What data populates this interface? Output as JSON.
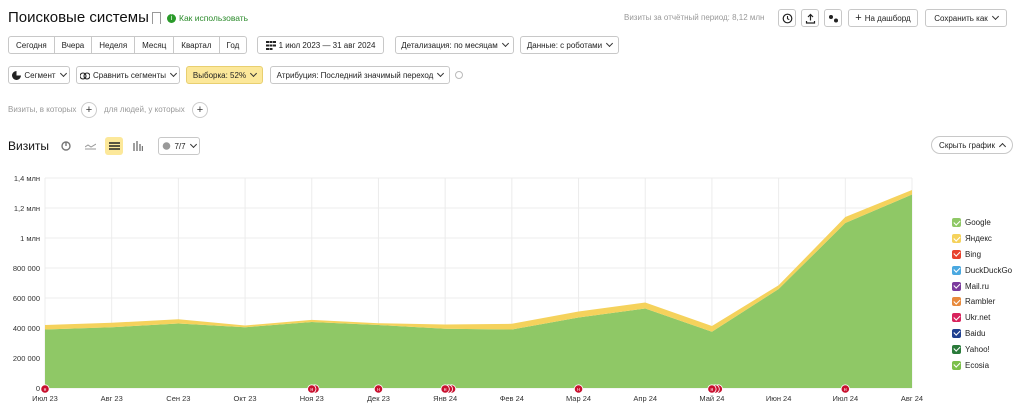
{
  "header": {
    "title": "Поисковые системы",
    "howto": "Как использовать",
    "visits_period": "Визиты за отчётный период: 8,12 млн",
    "dashboard_btn": "На дашборд",
    "save_btn": "Сохранить как"
  },
  "toolbar": {
    "periods": [
      "Сегодня",
      "Вчера",
      "Неделя",
      "Месяц",
      "Квартал",
      "Год"
    ],
    "date_range": "1 июл 2023 — 31 авг 2024",
    "detail": "Детализация: по месяцам",
    "data": "Данные: с роботами"
  },
  "segments": {
    "segment": "Сегмент",
    "compare": "Сравнить сегменты",
    "sample": "Выборка: 52%",
    "attribution": "Атрибуция: Последний значимый переход"
  },
  "filters": {
    "visits_where": "Визиты, в которых",
    "people_where": "для людей, у которых"
  },
  "chart_section": {
    "title": "Визиты",
    "series_counter": "7/7",
    "hide_chart": "Скрыть график"
  },
  "chart_data": {
    "type": "area",
    "stacked": true,
    "x": [
      "Июл 23",
      "Авг 23",
      "Сен 23",
      "Окт 23",
      "Ноя 23",
      "Дек 23",
      "Янв 24",
      "Фев 24",
      "Мар 24",
      "Апр 24",
      "Май 24",
      "Июн 24",
      "Июл 24",
      "Авг 24"
    ],
    "y_ticks": [
      "0",
      "200 000",
      "400 000",
      "600 000",
      "800 000",
      "1 млн",
      "1,2 млн",
      "1,4 млн"
    ],
    "ylim": [
      0,
      1400000
    ],
    "series": [
      {
        "name": "Google",
        "color": "#8fc866",
        "values": [
          390000,
          405000,
          430000,
          405000,
          440000,
          420000,
          395000,
          390000,
          470000,
          530000,
          375000,
          660000,
          1100000,
          1290000
        ]
      },
      {
        "name": "Яндекс",
        "color": "#f5d25c",
        "values": [
          30000,
          30000,
          28000,
          12000,
          14000,
          12000,
          28000,
          38000,
          40000,
          40000,
          38000,
          25000,
          40000,
          30000
        ]
      },
      {
        "name": "Bing",
        "color": "#e8412c",
        "values": [
          0,
          0,
          0,
          0,
          0,
          0,
          0,
          0,
          0,
          0,
          0,
          0,
          0,
          0
        ]
      },
      {
        "name": "DuckDuckGo",
        "color": "#4aa8e0",
        "values": [
          0,
          0,
          0,
          0,
          0,
          0,
          0,
          0,
          0,
          0,
          0,
          0,
          0,
          0
        ]
      },
      {
        "name": "Mail.ru",
        "color": "#7b3a9e",
        "values": [
          0,
          0,
          0,
          0,
          0,
          0,
          0,
          0,
          0,
          0,
          0,
          0,
          0,
          0
        ]
      },
      {
        "name": "Rambler",
        "color": "#e88a3c",
        "values": [
          0,
          0,
          0,
          0,
          0,
          0,
          0,
          0,
          0,
          0,
          0,
          0,
          0,
          0
        ]
      },
      {
        "name": "Ukr.net",
        "color": "#d8235c",
        "values": [
          0,
          0,
          0,
          0,
          0,
          0,
          0,
          0,
          0,
          0,
          0,
          0,
          0,
          0
        ]
      },
      {
        "name": "Baidu",
        "color": "#1f3f8f",
        "values": [
          0,
          0,
          0,
          0,
          0,
          0,
          0,
          0,
          0,
          0,
          0,
          0,
          0,
          0
        ]
      },
      {
        "name": "Yahoo!",
        "color": "#2a7a3a",
        "values": [
          0,
          0,
          0,
          0,
          0,
          0,
          0,
          0,
          0,
          0,
          0,
          0,
          0,
          0
        ]
      },
      {
        "name": "Ecosia",
        "color": "#7cc04a",
        "values": [
          0,
          0,
          0,
          0,
          0,
          0,
          0,
          0,
          0,
          0,
          0,
          0,
          0,
          0
        ]
      }
    ],
    "annotations": [
      {
        "x": "Июл 23",
        "count": 1
      },
      {
        "x": "Ноя 23",
        "count": 2
      },
      {
        "x": "Дек 23",
        "count": 1
      },
      {
        "x": "Янв 24",
        "count": 3
      },
      {
        "x": "Мар 24",
        "count": 1
      },
      {
        "x": "Май 24",
        "count": 3
      },
      {
        "x": "Июл 24",
        "count": 1
      }
    ],
    "annotation_color": "#c8102e",
    "grid": true,
    "legend": "right"
  }
}
